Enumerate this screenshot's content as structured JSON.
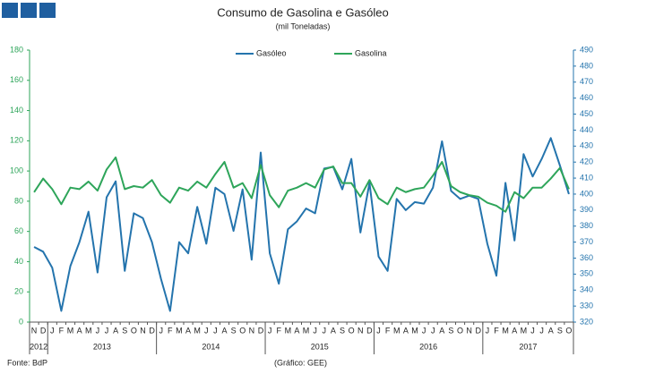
{
  "chart_data": {
    "type": "line",
    "title": "Consumo de Gasolina e Gasóleo",
    "subtitle": "(mil Toneladas)",
    "categories": [
      "N",
      "D",
      "J",
      "F",
      "M",
      "A",
      "M",
      "J",
      "J",
      "A",
      "S",
      "O",
      "N",
      "D",
      "J",
      "F",
      "M",
      "A",
      "M",
      "J",
      "J",
      "A",
      "S",
      "O",
      "N",
      "D",
      "J",
      "F",
      "M",
      "A",
      "M",
      "J",
      "J",
      "A",
      "S",
      "O",
      "N",
      "D",
      "J",
      "F",
      "M",
      "A",
      "M",
      "J",
      "J",
      "A",
      "S",
      "O",
      "N",
      "D",
      "J",
      "F",
      "M",
      "A",
      "M",
      "J",
      "J",
      "A",
      "S",
      "O"
    ],
    "year_groups": [
      "2012",
      "2013",
      "2014",
      "2015",
      "2016",
      "2017"
    ],
    "series": [
      {
        "name": "Gasóleo",
        "color": "#2474ad",
        "axis": "y2",
        "values": [
          367,
          364,
          354,
          327,
          355,
          370,
          389,
          351,
          398,
          408,
          352,
          388,
          385,
          370,
          347,
          327,
          370,
          363,
          392,
          369,
          404,
          400,
          377,
          403,
          359,
          426,
          363,
          344,
          378,
          383,
          391,
          388,
          416,
          417,
          403,
          422,
          376,
          407,
          361,
          352,
          397,
          390,
          395,
          394,
          404,
          433,
          402,
          397,
          399,
          397,
          369,
          349,
          407,
          371,
          425,
          411,
          422,
          435,
          418,
          400
        ]
      },
      {
        "name": "Gasolina",
        "color": "#2ea55a",
        "values": [
          86,
          95,
          88,
          78,
          89,
          88,
          93,
          87,
          101,
          109,
          88,
          90,
          89,
          94,
          84,
          79,
          89,
          87,
          93,
          89,
          98,
          106,
          89,
          92,
          82,
          104,
          84,
          76,
          87,
          89,
          92,
          89,
          101,
          103,
          92,
          92,
          83,
          94,
          82,
          78,
          89,
          86,
          88,
          89,
          97,
          106,
          90,
          86,
          84,
          83,
          79,
          77,
          73,
          86,
          82,
          89,
          89,
          95,
          102,
          88
        ]
      }
    ],
    "ylim": [
      0,
      180
    ],
    "yticks": [
      0,
      20,
      40,
      60,
      80,
      100,
      120,
      140,
      160,
      180
    ],
    "y2lim": [
      320,
      490
    ],
    "y2ticks": [
      320,
      330,
      340,
      350,
      360,
      370,
      380,
      390,
      400,
      410,
      420,
      430,
      440,
      450,
      460,
      470,
      480,
      490
    ],
    "source": "Fonte: BdP",
    "credit": "(Gráfico: GEE)"
  }
}
